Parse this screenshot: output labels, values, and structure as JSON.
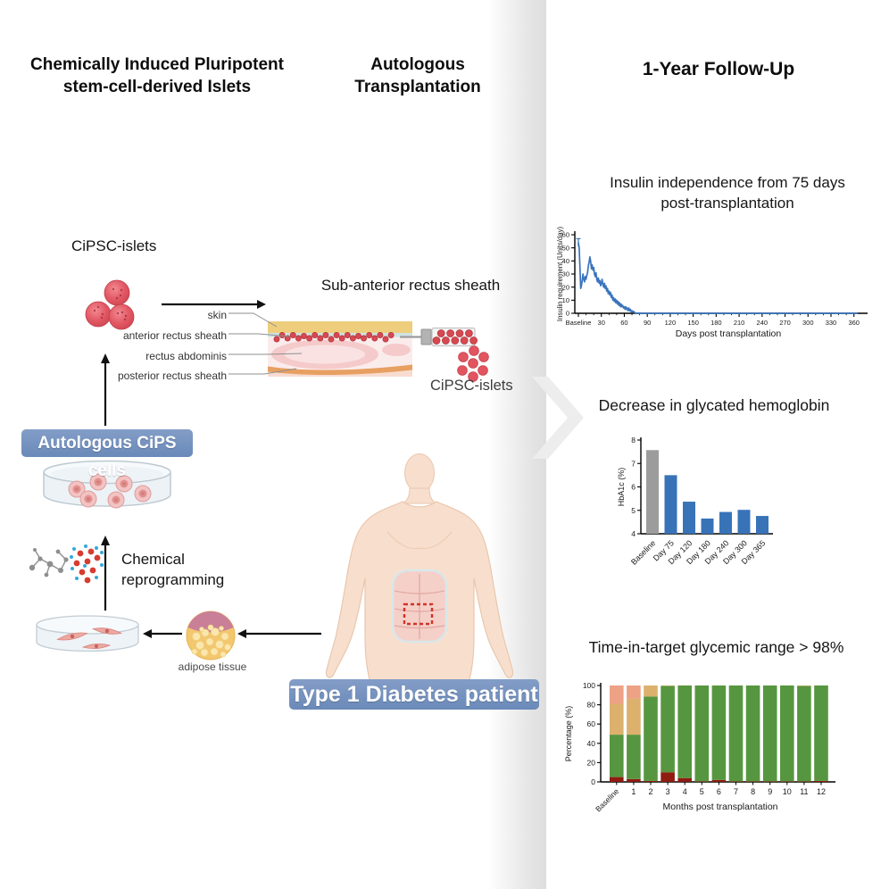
{
  "header": {
    "left_title_line1": "Chemically Induced Pluripotent",
    "left_title_line2": "stem-cell-derived Islets",
    "mid_title_line1": "Autologous",
    "mid_title_line2": "Transplantation",
    "right_title": "1-Year Follow-Up"
  },
  "left_panel": {
    "cipsc_islets_label": "CiPSC-islets",
    "cips_cells_box_label": "Autologous CiPS cells",
    "chemical_line1": "Chemical",
    "chemical_line2": "reprogramming",
    "adipose_label": "adipose tissue"
  },
  "mid_panel": {
    "subtitle": "Sub-anterior rectus sheath",
    "anatomy_labels": [
      "skin",
      "anterior rectus sheath",
      "rectus abdominis",
      "posterior rectus sheath"
    ],
    "cipsc_islets_label": "CiPSC-islets",
    "patient_box_label": "Type 1 Diabetes patient"
  },
  "right_panel": {
    "chart1_title_line1": "Insulin independence from 75 days",
    "chart1_title_line2": "post-transplantation",
    "chart2_title": "Decrease in glycated hemoglobin",
    "chart3_title": "Time-in-target glycemic range > 98%"
  },
  "colors": {
    "accent_blue_box": "#6f90c1",
    "line_blue": "#3b74bc",
    "bar_blue": "#3873b8",
    "bar_gray": "#9c9c9c",
    "stack_green": "#579640",
    "stack_tan": "#dcb16e",
    "stack_salmon": "#eda185",
    "stack_darkred": "#8f1b11",
    "islet_red": "#e05560"
  },
  "chart_data": [
    {
      "type": "line",
      "title": "Insulin independence from 75 days post-transplantation",
      "xlabel": "Days post transplantation",
      "ylabel": "Insulin requirement (Units/day)",
      "ylim": [
        0,
        60
      ],
      "y_ticks": [
        0,
        10,
        20,
        30,
        40,
        50,
        60
      ],
      "x_ticks": [
        "Baseline",
        "30",
        "60",
        "90",
        "120",
        "150",
        "180",
        "210",
        "240",
        "270",
        "300",
        "330",
        "360"
      ],
      "x_tick_days": [
        0,
        30,
        60,
        90,
        120,
        150,
        180,
        210,
        240,
        270,
        300,
        330,
        360
      ],
      "minor_tick_step": 10,
      "baseline_error": 3,
      "line_color": "#3b74bc",
      "points": [
        [
          0,
          54
        ],
        [
          1,
          50
        ],
        [
          2,
          36
        ],
        [
          3,
          19
        ],
        [
          4,
          21
        ],
        [
          5,
          25
        ],
        [
          6,
          30
        ],
        [
          7,
          26
        ],
        [
          8,
          24
        ],
        [
          9,
          28
        ],
        [
          10,
          26
        ],
        [
          11,
          29
        ],
        [
          12,
          31
        ],
        [
          13,
          36
        ],
        [
          14,
          39
        ],
        [
          15,
          43
        ],
        [
          16,
          40
        ],
        [
          17,
          34
        ],
        [
          18,
          37
        ],
        [
          19,
          33
        ],
        [
          20,
          35
        ],
        [
          21,
          30
        ],
        [
          22,
          28
        ],
        [
          23,
          31
        ],
        [
          24,
          26
        ],
        [
          25,
          24
        ],
        [
          26,
          27
        ],
        [
          27,
          23
        ],
        [
          28,
          25
        ],
        [
          29,
          21
        ],
        [
          30,
          23
        ],
        [
          31,
          26
        ],
        [
          32,
          22
        ],
        [
          33,
          20
        ],
        [
          34,
          23
        ],
        [
          35,
          19
        ],
        [
          36,
          21
        ],
        [
          37,
          17
        ],
        [
          38,
          19
        ],
        [
          39,
          15
        ],
        [
          40,
          17
        ],
        [
          41,
          14
        ],
        [
          42,
          16
        ],
        [
          43,
          12
        ],
        [
          44,
          14
        ],
        [
          45,
          10
        ],
        [
          46,
          12
        ],
        [
          47,
          9
        ],
        [
          48,
          11
        ],
        [
          49,
          8
        ],
        [
          50,
          10
        ],
        [
          51,
          7
        ],
        [
          52,
          9
        ],
        [
          53,
          6
        ],
        [
          54,
          8
        ],
        [
          55,
          5
        ],
        [
          56,
          7
        ],
        [
          57,
          5
        ],
        [
          58,
          6
        ],
        [
          59,
          4
        ],
        [
          60,
          5
        ],
        [
          61,
          3
        ],
        [
          62,
          5
        ],
        [
          63,
          3
        ],
        [
          64,
          4
        ],
        [
          65,
          2
        ],
        [
          66,
          4
        ],
        [
          67,
          2
        ],
        [
          68,
          3
        ],
        [
          69,
          1
        ],
        [
          70,
          2
        ],
        [
          71,
          1
        ],
        [
          72,
          1.5
        ],
        [
          73,
          0.8
        ],
        [
          74,
          0.4
        ],
        [
          75,
          0
        ],
        [
          80,
          0
        ],
        [
          90,
          0
        ],
        [
          105,
          0
        ],
        [
          120,
          0
        ],
        [
          135,
          0
        ],
        [
          150,
          0
        ],
        [
          165,
          0
        ],
        [
          180,
          0
        ],
        [
          195,
          0
        ],
        [
          210,
          0
        ],
        [
          225,
          0
        ],
        [
          240,
          0
        ],
        [
          255,
          0
        ],
        [
          270,
          0
        ],
        [
          285,
          0
        ],
        [
          300,
          0
        ],
        [
          315,
          0
        ],
        [
          330,
          0
        ],
        [
          345,
          0
        ],
        [
          365,
          0
        ]
      ]
    },
    {
      "type": "bar",
      "title": "Decrease in glycated hemoglobin",
      "ylabel": "HbA1c (%)",
      "ylim": [
        4,
        8
      ],
      "y_ticks": [
        4,
        5,
        6,
        7,
        8
      ],
      "categories": [
        "Baseline",
        "Day 75",
        "Day 120",
        "Day 180",
        "Day 240",
        "Day 300",
        "Day 365"
      ],
      "values": [
        7.57,
        6.5,
        5.37,
        4.65,
        4.93,
        5.02,
        4.76
      ],
      "bar_colors": [
        "#9c9c9c",
        "#3873b8",
        "#3873b8",
        "#3873b8",
        "#3873b8",
        "#3873b8",
        "#3873b8"
      ]
    },
    {
      "type": "stacked_bar",
      "title": "Time-in-target glycemic range > 98%",
      "xlabel": "Months post transplantation",
      "ylabel": "Percentage (%)",
      "ylim": [
        0,
        100
      ],
      "y_ticks": [
        0,
        20,
        40,
        60,
        80,
        100
      ],
      "categories": [
        "Baseline",
        "1",
        "2",
        "3",
        "4",
        "5",
        "6",
        "7",
        "8",
        "9",
        "10",
        "11",
        "12"
      ],
      "series": [
        {
          "name": "below_range",
          "color": "#8f1b11",
          "values": [
            5,
            3,
            1,
            10,
            4,
            0.5,
            2,
            0.5,
            0.5,
            0.5,
            0.5,
            0.5,
            1
          ]
        },
        {
          "name": "in_range",
          "color": "#579640",
          "values": [
            44,
            46,
            87.5,
            89.5,
            96,
            99.5,
            98,
            99.5,
            99.5,
            99.5,
            99.5,
            99,
            99
          ]
        },
        {
          "name": "above_range",
          "color": "#dcb16e",
          "values": [
            32,
            37.5,
            11.5,
            0.5,
            0,
            0,
            0,
            0,
            0,
            0,
            0,
            0.5,
            0
          ]
        },
        {
          "name": "far_above_range",
          "color": "#eda185",
          "values": [
            19,
            13.5,
            0,
            0,
            0,
            0,
            0,
            0,
            0,
            0,
            0,
            0,
            0
          ]
        }
      ]
    }
  ]
}
